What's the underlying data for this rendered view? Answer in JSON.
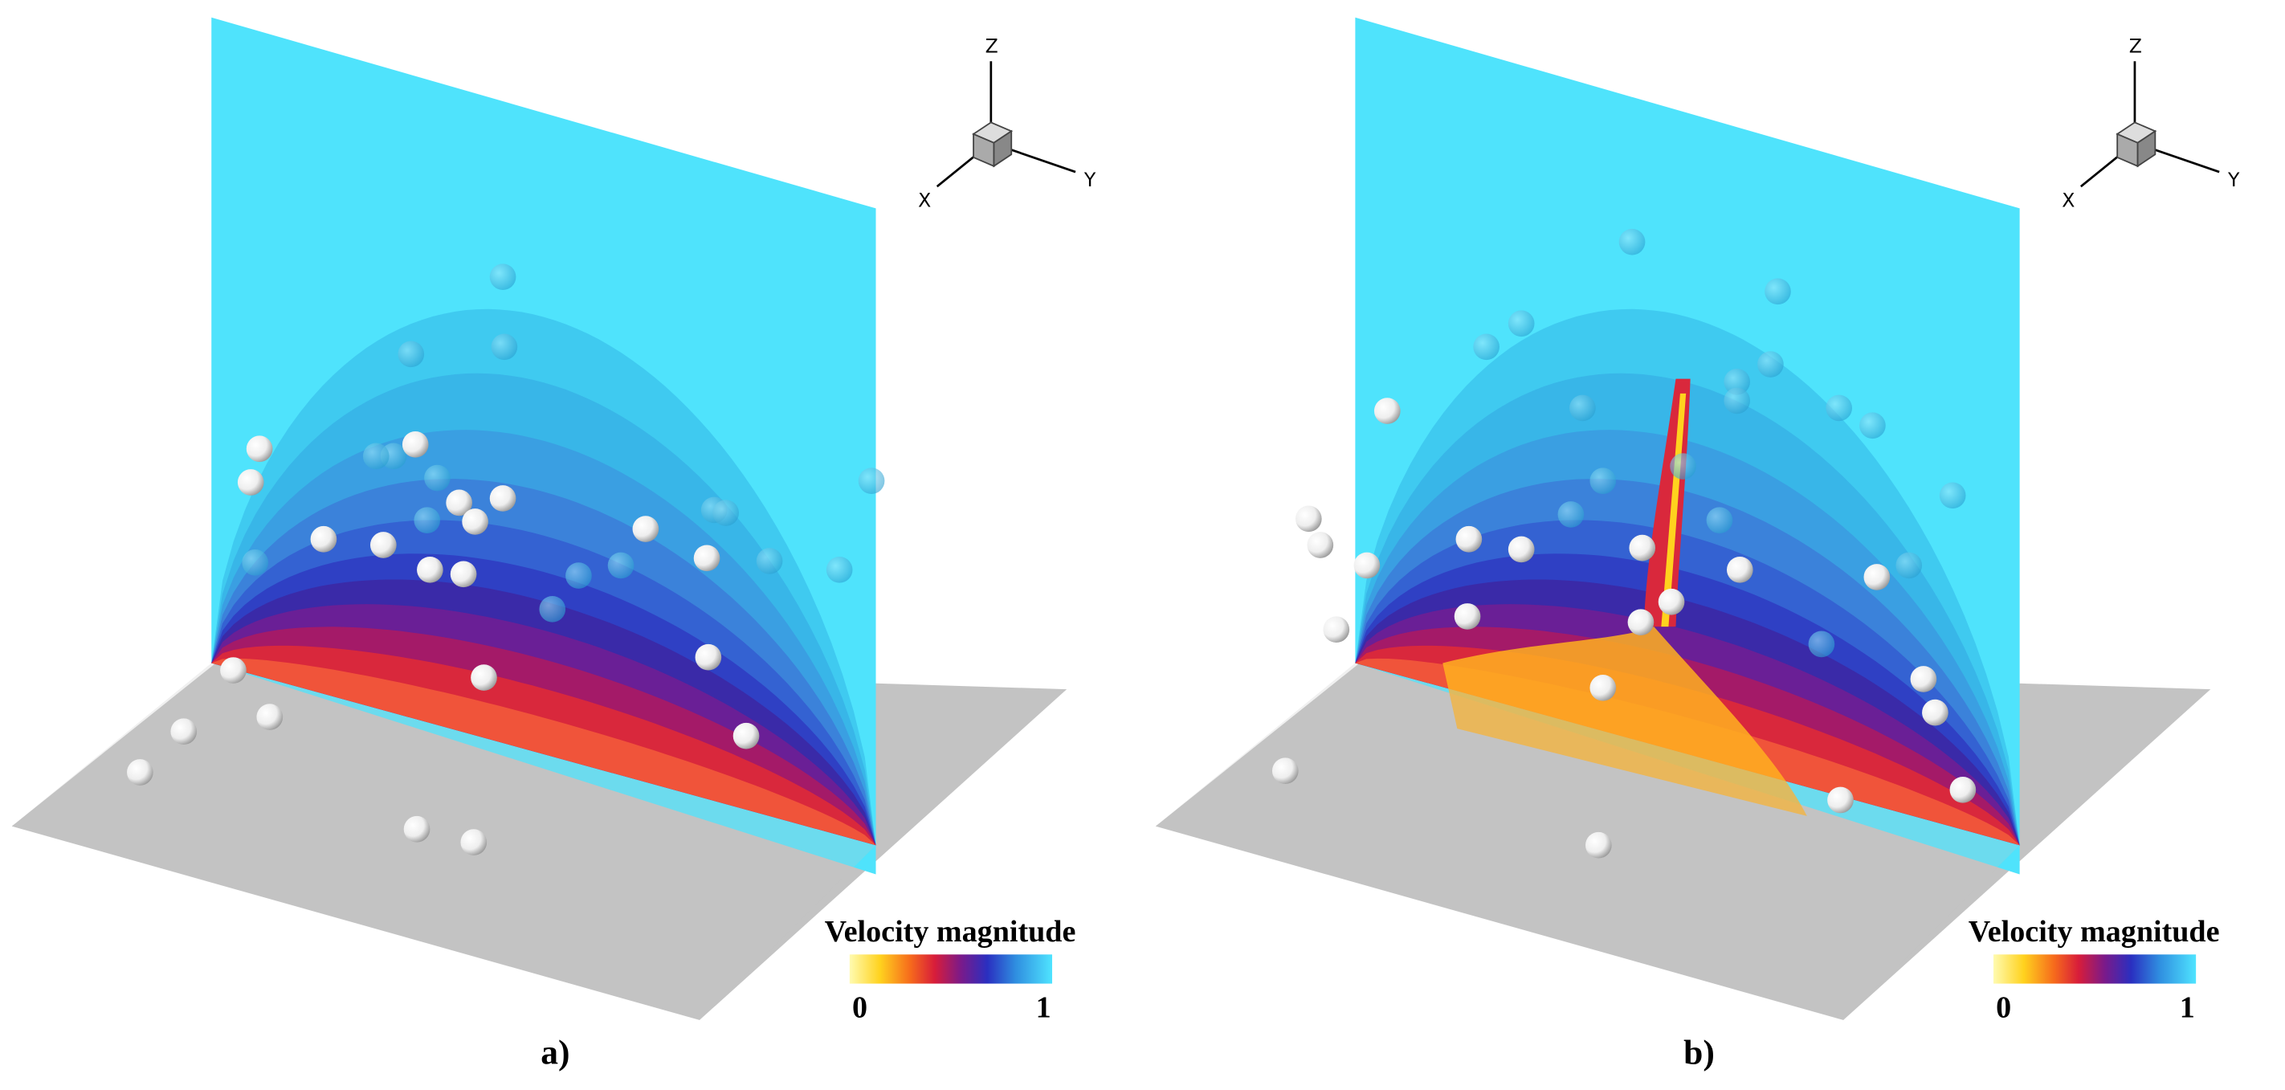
{
  "panels": [
    {
      "label": "a)",
      "axes": {
        "x": "X",
        "y": "Y",
        "z": "Z"
      },
      "colorbar": {
        "title": "Velocity magnitude",
        "min": "0",
        "max": "1"
      }
    },
    {
      "label": "b)",
      "axes": {
        "x": "X",
        "y": "Y",
        "z": "Z"
      },
      "colorbar": {
        "title": "Velocity magnitude",
        "min": "0",
        "max": "1"
      }
    }
  ]
}
